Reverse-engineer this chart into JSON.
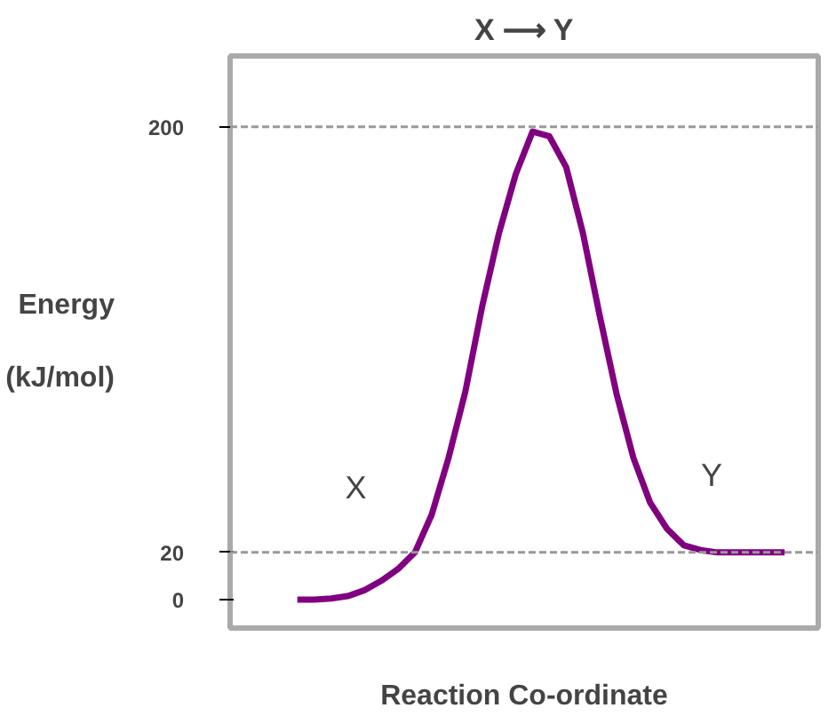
{
  "chart_data": {
    "type": "line",
    "title": "X ⟶ Y",
    "xlabel": "Reaction Co-ordinate",
    "ylabel": "Energy (kJ/mol)",
    "categories": [
      null,
      null,
      null,
      null,
      null,
      null,
      null,
      null,
      null,
      null,
      null,
      null,
      null,
      null,
      null,
      null,
      null,
      null,
      null,
      null,
      null,
      null,
      null,
      null,
      null,
      null,
      null,
      null,
      null,
      null
    ],
    "series": [
      {
        "color": "#800080",
        "values": [
          0,
          0,
          0.5,
          1.5,
          4,
          8,
          13,
          20,
          36,
          60,
          88,
          124,
          155,
          180,
          198,
          196,
          183,
          155,
          120,
          87,
          60,
          41,
          30,
          23,
          21,
          20,
          20,
          20,
          20,
          20
        ]
      }
    ],
    "ylim": [
      -12,
      230
    ],
    "yticks": [
      0,
      20,
      200
    ],
    "ref_lines": [
      {
        "axis": "y",
        "value": 200,
        "color": "#999999",
        "line_style": "dashed"
      },
      {
        "axis": "y",
        "value": 20,
        "color": "#999999",
        "line_style": "dashed"
      }
    ],
    "annotations": [
      "X",
      "Y"
    ],
    "grid": false,
    "marker": "none",
    "line_style": "solid"
  }
}
